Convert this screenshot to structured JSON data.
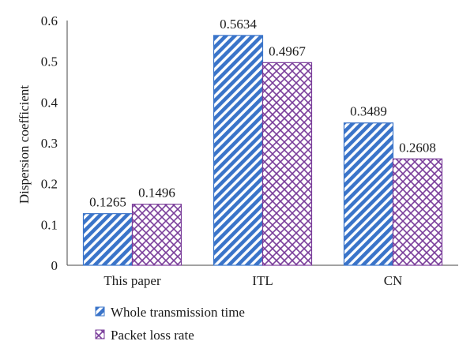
{
  "chart_data": {
    "type": "bar",
    "title": "",
    "xlabel": "",
    "ylabel": "Dispersion coefficient",
    "ylim": [
      0,
      0.6
    ],
    "yticks": [
      "0",
      "0.1",
      "0.2",
      "0.3",
      "0.4",
      "0.5",
      "0.6"
    ],
    "categories": [
      "This paper",
      "ITL",
      "CN"
    ],
    "series": [
      {
        "name": "Whole transmission time",
        "values": [
          0.1265,
          0.5634,
          0.3489
        ],
        "labels": [
          "0.1265",
          "0.5634",
          "0.3489"
        ],
        "color": "#3a74c9",
        "pattern": "diagonal-stripes"
      },
      {
        "name": "Packet loss rate",
        "values": [
          0.1496,
          0.4967,
          0.2608
        ],
        "labels": [
          "0.1496",
          "0.4967",
          "0.2608"
        ],
        "color": "#7a3d9a",
        "pattern": "crosshatch"
      }
    ],
    "grid": false,
    "legend_position": "bottom-left"
  }
}
